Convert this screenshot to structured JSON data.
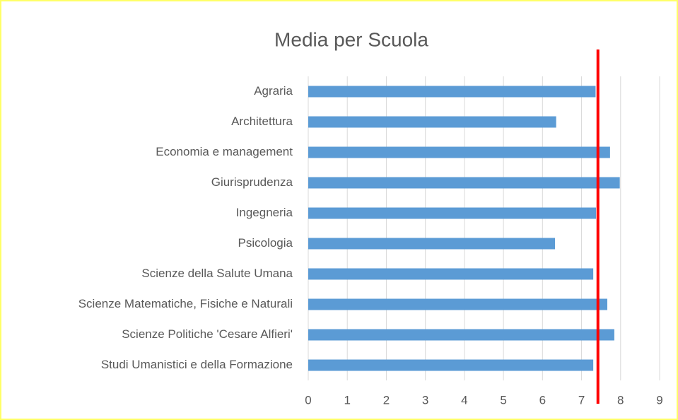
{
  "chart_data": {
    "type": "bar",
    "orientation": "horizontal",
    "title": "Media per Scuola",
    "categories": [
      "Agraria",
      "Architettura",
      "Economia e management",
      "Giurisprudenza",
      "Ingegneria",
      "Psicologia",
      "Scienze della Salute Umana",
      "Scienze Matematiche, Fisiche e Naturali",
      "Scienze Politiche 'Cesare Alfieri'",
      "Studi Umanistici e della Formazione"
    ],
    "values": [
      7.36,
      6.35,
      7.73,
      7.98,
      7.37,
      6.32,
      7.3,
      7.66,
      7.84,
      7.3
    ],
    "color": "#5b9bd5",
    "xlim": [
      0,
      9
    ],
    "xticks": [
      0,
      1,
      2,
      3,
      4,
      5,
      6,
      7,
      8,
      9
    ],
    "grid": true,
    "reference_line": {
      "value": 7.42,
      "color": "#ff0000"
    }
  }
}
